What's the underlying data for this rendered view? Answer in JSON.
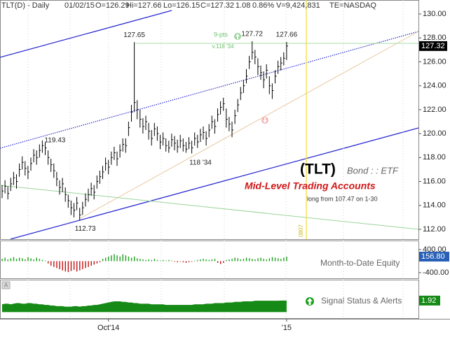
{
  "header": {
    "symbol": "TLT(D) - Daily",
    "date": "01/02/15",
    "open": "O=126.29",
    "high": "Hi=127.66",
    "low": "Lo=126.15",
    "close": "C=127.32",
    "change": "1.08",
    "change_pct": "0.86%",
    "volume": "V=9,424,831",
    "exchange": "TE=NASDAQ"
  },
  "chart_data": [
    {
      "type": "ohlc",
      "color": "#000000",
      "categories": [
        null,
        null,
        null,
        null,
        null,
        null,
        null,
        null,
        null,
        null,
        null,
        null,
        null,
        null,
        null,
        null,
        null,
        null,
        null,
        null,
        null,
        null,
        null,
        null,
        null,
        null,
        null,
        null,
        null,
        null,
        null,
        null,
        null,
        null,
        null,
        null,
        null,
        "Oct'14",
        null,
        null,
        null,
        null,
        null,
        null,
        null,
        null,
        null,
        null,
        null,
        null,
        null,
        null,
        null,
        null,
        null,
        null,
        null,
        null,
        null,
        null,
        null,
        null,
        null,
        null,
        null,
        null,
        null,
        null,
        null,
        null,
        null,
        null,
        null,
        null,
        null,
        null,
        null,
        null,
        null,
        null,
        null,
        null,
        null,
        null,
        null,
        null,
        null,
        null,
        null,
        null,
        null,
        null,
        null,
        null,
        null,
        null,
        null,
        null,
        null,
        "'15"
      ],
      "high": [
        115.7,
        116.1,
        115.6,
        116.3,
        116.8,
        116.6,
        117.5,
        118.1,
        117.7,
        117.3,
        118.0,
        118.7,
        118.6,
        119.1,
        119.43,
        119.3,
        118.6,
        117.9,
        117.5,
        116.8,
        116.1,
        116.3,
        115.5,
        114.9,
        114.4,
        114.2,
        114.7,
        113.8,
        114.3,
        115.0,
        115.4,
        115.9,
        115.7,
        116.5,
        116.9,
        117.3,
        118.0,
        117.8,
        118.5,
        118.9,
        118.5,
        119.1,
        119.6,
        119.6,
        121.0,
        122.4,
        127.65,
        122.8,
        122.0,
        121.3,
        121.5,
        120.9,
        120.3,
        120.9,
        120.6,
        119.9,
        120.1,
        119.6,
        119.4,
        120.0,
        119.8,
        119.5,
        119.9,
        119.6,
        119.3,
        119.7,
        119.4,
        120.1,
        119.9,
        120.4,
        120.6,
        120.2,
        120.8,
        121.5,
        121.2,
        122.1,
        122.7,
        123.0,
        122.1,
        121.4,
        121.0,
        122.0,
        122.9,
        123.9,
        124.5,
        125.4,
        126.5,
        127.72,
        127.0,
        126.3,
        125.7,
        125.2,
        125.8,
        124.8,
        124.2,
        125.3,
        126.1,
        126.4,
        126.8,
        127.66
      ],
      "low": [
        114.6,
        115.0,
        114.5,
        115.2,
        115.7,
        115.4,
        116.4,
        117.0,
        116.5,
        116.2,
        116.9,
        117.6,
        117.4,
        118.0,
        118.4,
        118.2,
        117.4,
        116.8,
        116.3,
        115.6,
        114.9,
        115.1,
        114.3,
        113.8,
        113.2,
        113.0,
        113.6,
        112.73,
        113.2,
        113.9,
        114.3,
        114.8,
        114.5,
        115.4,
        115.8,
        116.2,
        116.9,
        116.6,
        117.4,
        117.8,
        117.3,
        118.0,
        118.5,
        118.4,
        119.8,
        121.0,
        121.8,
        121.2,
        120.5,
        120.0,
        120.3,
        119.5,
        119.0,
        119.8,
        119.4,
        118.7,
        119.0,
        118.5,
        118.4,
        118.9,
        118.6,
        118.4,
        118.8,
        118.5,
        118.4,
        118.7,
        118.34,
        119.0,
        118.8,
        119.3,
        119.5,
        119.0,
        119.7,
        120.4,
        120.0,
        121.0,
        121.6,
        121.9,
        120.5,
        120.2,
        119.7,
        120.8,
        121.8,
        122.8,
        123.4,
        124.2,
        125.4,
        126.2,
        125.8,
        124.9,
        124.5,
        123.8,
        124.6,
        123.3,
        122.9,
        124.2,
        125.0,
        125.3,
        125.7,
        126.15
      ],
      "close": [
        115.2,
        115.6,
        115.0,
        115.8,
        116.3,
        116.0,
        117.0,
        117.6,
        117.1,
        116.8,
        117.5,
        118.2,
        118.0,
        118.6,
        119.0,
        118.8,
        118.0,
        117.4,
        116.9,
        116.2,
        115.5,
        115.8,
        114.9,
        114.4,
        113.8,
        113.6,
        114.2,
        113.2,
        113.8,
        114.5,
        114.9,
        115.4,
        115.1,
        116.0,
        116.4,
        116.8,
        117.5,
        117.2,
        118.0,
        118.4,
        117.9,
        118.6,
        119.1,
        119.0,
        120.5,
        121.8,
        122.6,
        122.0,
        121.2,
        120.6,
        121.0,
        120.2,
        119.6,
        120.4,
        120.0,
        119.3,
        119.6,
        119.0,
        118.8,
        119.5,
        119.2,
        118.9,
        119.4,
        119.0,
        118.7,
        119.2,
        118.8,
        119.6,
        119.3,
        119.9,
        120.1,
        119.6,
        120.3,
        121.0,
        120.6,
        121.6,
        122.2,
        122.5,
        121.2,
        120.8,
        120.3,
        121.5,
        122.4,
        123.4,
        124.0,
        124.8,
        126.0,
        126.8,
        126.4,
        125.6,
        125.1,
        124.5,
        125.3,
        124.0,
        123.6,
        124.8,
        125.6,
        125.9,
        126.3,
        127.32
      ],
      "ylim": [
        111.18,
        131.17
      ],
      "yticks": [
        {
          "value": 112,
          "label": "112.00"
        },
        {
          "value": 114,
          "label": "114.00"
        },
        {
          "value": 116,
          "label": "116.00"
        },
        {
          "value": 118,
          "label": "118.00"
        },
        {
          "value": 120,
          "label": "120.00"
        },
        {
          "value": 122,
          "label": "122.00"
        },
        {
          "value": 124,
          "label": "124.00"
        },
        {
          "value": 126,
          "label": "126.00"
        },
        {
          "value": 128,
          "label": "128.00"
        },
        {
          "value": 130,
          "label": "130.00"
        }
      ],
      "annotations": [
        "9-pts",
        "v.118 '34",
        "118 '34",
        "(TLT)",
        "Bond : : ETF",
        "Mid-Level Trading Accounts",
        "long from 107.47 on 1-30",
        "0807"
      ]
    },
    {
      "type": "histogram-bar",
      "title": "Month-to-Date Equity",
      "color": "#1aa01a",
      "negative_color": "#c01010",
      "value_color": "#2860b8",
      "values": [
        80,
        120,
        60,
        100,
        140,
        80,
        120,
        100,
        60,
        140,
        100,
        60,
        120,
        80,
        40,
        20,
        -80,
        -160,
        -200,
        -240,
        -280,
        -320,
        -360,
        -380,
        -340,
        -300,
        -360,
        -320,
        -280,
        -240,
        -200,
        -160,
        -120,
        -80,
        -40,
        80,
        120,
        160,
        200,
        240,
        200,
        160,
        240,
        200,
        160,
        120,
        160,
        100,
        80,
        60,
        40,
        60,
        40,
        80,
        40,
        20,
        40,
        20,
        40,
        20,
        -20,
        -40,
        -20,
        -40,
        -60,
        -40,
        -20,
        20,
        40,
        60,
        80,
        60,
        40,
        60,
        80,
        -60,
        -100,
        -60,
        40,
        60,
        80,
        120,
        100,
        60,
        80,
        120,
        100,
        80,
        60,
        100,
        120,
        80,
        60,
        100,
        140,
        120,
        100,
        80,
        120,
        156.8
      ],
      "value_labels": [
        null,
        null,
        null,
        null,
        null,
        null,
        null,
        null,
        null,
        null,
        null,
        null,
        null,
        null,
        null,
        null,
        null,
        null,
        null,
        null,
        null,
        null,
        null,
        null,
        null,
        null,
        null,
        null,
        null,
        null,
        null,
        null,
        null,
        null,
        null,
        null,
        null,
        null,
        null,
        null,
        null,
        null,
        null,
        null,
        null,
        null,
        null,
        null,
        null,
        null,
        null,
        null,
        null,
        null,
        null,
        null,
        null,
        null,
        null,
        null,
        null,
        null,
        null,
        null,
        null,
        null,
        null,
        null,
        null,
        null,
        null,
        null,
        null,
        null,
        null,
        null,
        null,
        null,
        null,
        null,
        null,
        null,
        null,
        null,
        null,
        null,
        null,
        null,
        null,
        null,
        null,
        null,
        null,
        null,
        null,
        null,
        null,
        null,
        null,
        "156.80"
      ],
      "ylim": [
        -594,
        691
      ],
      "yticks": [
        {
          "value": 400,
          "label": "400.00"
        },
        {
          "value": -400,
          "label": "-400.00"
        }
      ]
    },
    {
      "type": "area",
      "title": "Signal Status & Alerts",
      "color": "#168a16",
      "values": [
        1.3,
        1.4,
        1.4,
        1.3,
        1.4,
        1.5,
        1.5,
        1.4,
        1.4,
        1.5,
        1.5,
        1.4,
        1.4,
        1.3,
        1.3,
        1.2,
        1.2,
        1.1,
        1.1,
        1.0,
        1.0,
        1.0,
        0.9,
        0.9,
        0.9,
        1.0,
        1.0,
        0.9,
        1.0,
        1.0,
        1.1,
        1.1,
        1.2,
        1.2,
        1.3,
        1.4,
        1.5,
        1.6,
        1.7,
        1.8,
        1.8,
        1.8,
        1.7,
        1.7,
        1.6,
        1.6,
        1.5,
        1.5,
        1.4,
        1.4,
        1.4,
        1.4,
        1.3,
        1.3,
        1.3,
        1.3,
        1.3,
        1.2,
        1.2,
        1.2,
        1.2,
        1.2,
        1.2,
        1.2,
        1.2,
        1.2,
        1.2,
        1.3,
        1.3,
        1.3,
        1.3,
        1.4,
        1.4,
        1.4,
        1.5,
        1.5,
        1.5,
        1.5,
        1.6,
        1.6,
        1.6,
        1.7,
        1.7,
        1.7,
        1.8,
        1.8,
        1.8,
        1.8,
        1.9,
        1.9,
        1.9,
        1.9,
        1.9,
        1.9,
        1.9,
        1.9,
        1.9,
        1.92,
        1.92,
        1.92
      ],
      "ylim": [
        -1,
        5.4
      ]
    }
  ]
}
